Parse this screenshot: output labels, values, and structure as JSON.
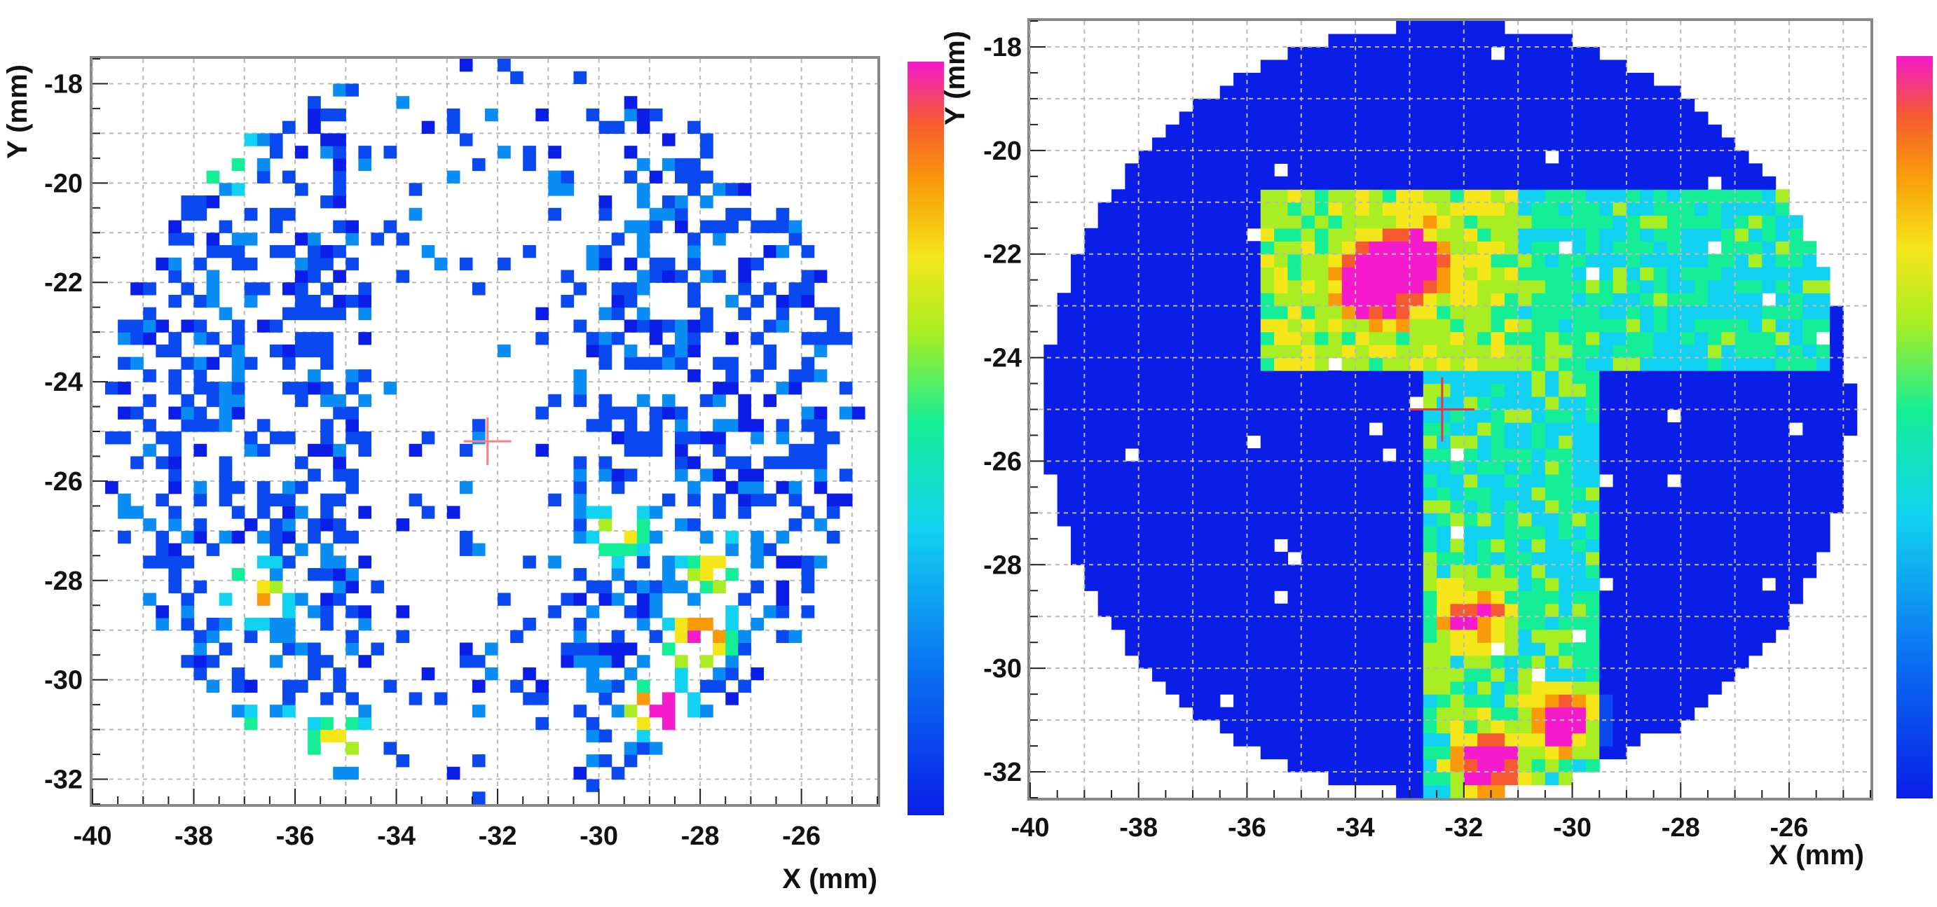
{
  "chart_data": [
    {
      "type": "heatmap",
      "panel": "left",
      "xlabel": "X (mm)",
      "ylabel": "Y (mm)",
      "xlim": [
        -40,
        -24.5
      ],
      "ylim": [
        -32.5,
        -17.5
      ],
      "xticks": [
        "-40",
        "-38",
        "-36",
        "-34",
        "-32",
        "-30",
        "-28",
        "-26"
      ],
      "yticks": [
        "-18",
        "-20",
        "-22",
        "-24",
        "-26",
        "-28",
        "-30",
        "-32"
      ],
      "marker": {
        "x": -32.2,
        "y": -25.2,
        "color": "#ff7f7f"
      },
      "grid": true,
      "colorbar": true,
      "bins": {
        "nx": 62,
        "ny": 60
      },
      "density": "sparse",
      "hot_spots": [
        {
          "x": -28.0,
          "y": -29.2,
          "level": 0.85
        },
        {
          "x": -28.8,
          "y": -30.6,
          "level": 0.95
        },
        {
          "x": -29.6,
          "y": -27.0,
          "level": 0.5
        },
        {
          "x": -27.8,
          "y": -27.8,
          "level": 0.5
        },
        {
          "x": -36.8,
          "y": -28.3,
          "level": 0.6
        },
        {
          "x": -36.4,
          "y": -31.3,
          "level": 0.55
        },
        {
          "x": -35.2,
          "y": -31.3,
          "level": 0.6
        },
        {
          "x": -37.3,
          "y": -19.4,
          "level": 0.5
        }
      ]
    },
    {
      "type": "heatmap",
      "panel": "right",
      "xlabel": "X (mm)",
      "ylabel": "Y (mm)",
      "xlim": [
        -40,
        -24.5
      ],
      "ylim": [
        -32.5,
        -17.5
      ],
      "xticks": [
        "-40",
        "-38",
        "-36",
        "-34",
        "-32",
        "-30",
        "-28",
        "-26"
      ],
      "yticks": [
        "-18",
        "-20",
        "-22",
        "-24",
        "-26",
        "-28",
        "-30",
        "-32"
      ],
      "marker": {
        "x": -32.4,
        "y": -25.0,
        "color": "#ee3344"
      },
      "grid": true,
      "colorbar": true,
      "bins": {
        "nx": 62,
        "ny": 60
      },
      "density": "dense",
      "hot_spots": [
        {
          "x": -33.0,
          "y": -22.2,
          "level": 0.78
        },
        {
          "x": -33.6,
          "y": -22.5,
          "level": 0.97
        },
        {
          "x": -31.5,
          "y": -31.8,
          "level": 0.75
        },
        {
          "x": -30.2,
          "y": -31.0,
          "level": 0.68
        },
        {
          "x": -31.8,
          "y": -29.0,
          "level": 0.55
        }
      ]
    }
  ],
  "colors": {
    "background": "#ffffff",
    "frame": "#888888",
    "grid": "#b9b9b9",
    "palette": [
      "#0a1ee8",
      "#0a48f0",
      "#0a8cf5",
      "#11d2f0",
      "#14ee96",
      "#a8ee22",
      "#f5e61a",
      "#fa9a0a",
      "#f55a30",
      "#f51acc"
    ]
  }
}
